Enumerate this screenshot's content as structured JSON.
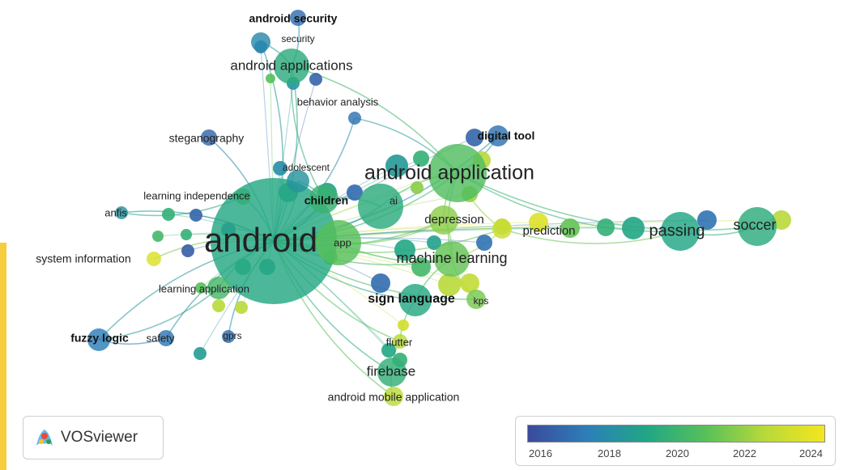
{
  "brand": {
    "name": "VOSviewer"
  },
  "legend": {
    "ticks": [
      "2016",
      "2018",
      "2020",
      "2022",
      "2024"
    ]
  },
  "colors": {
    "low": "#3b4a9c",
    "mid": "#21a685",
    "high": "#f4e61e",
    "accent": "#f6cd3c"
  },
  "nodes": [
    {
      "id": "android",
      "label": "android",
      "year": 2019.6
    },
    {
      "id": "android-application",
      "label": "android application",
      "year": 2020.8
    },
    {
      "id": "android-applications",
      "label": "android applications",
      "year": 2019.8
    },
    {
      "id": "android-security",
      "label": "android security",
      "year": 2016.8
    },
    {
      "id": "security",
      "label": "security",
      "year": 2018.0
    },
    {
      "id": "behavior-analysis",
      "label": "behavior analysis",
      "year": 2017.0
    },
    {
      "id": "steganography",
      "label": "steganography",
      "year": 2016.5
    },
    {
      "id": "digital-tool",
      "label": "digital tool",
      "year": 2017.0
    },
    {
      "id": "adolescent",
      "label": "adolescent",
      "year": 2018.6
    },
    {
      "id": "children",
      "label": "children",
      "year": 2020.2
    },
    {
      "id": "ai",
      "label": "ai",
      "year": 2019.8
    },
    {
      "id": "learning-independence",
      "label": "learning independence",
      "year": 2020.0
    },
    {
      "id": "anfis",
      "label": "anfis",
      "year": 2018.5
    },
    {
      "id": "system-information",
      "label": "system information",
      "year": 2023.5
    },
    {
      "id": "app",
      "label": "app",
      "year": 2021.0
    },
    {
      "id": "depression",
      "label": "depression",
      "year": 2021.8
    },
    {
      "id": "prediction",
      "label": "prediction",
      "year": 2023.0
    },
    {
      "id": "passing",
      "label": "passing",
      "year": 2019.5
    },
    {
      "id": "soccer",
      "label": "soccer",
      "year": 2019.8
    },
    {
      "id": "machine-learning",
      "label": "machine learning",
      "year": 2021.2
    },
    {
      "id": "learning-application",
      "label": "learning application",
      "year": 2020.5
    },
    {
      "id": "sign-language",
      "label": "sign language",
      "year": 2019.6
    },
    {
      "id": "kps",
      "label": "kps",
      "year": 2021.5
    },
    {
      "id": "fuzzy-logic",
      "label": "fuzzy logic",
      "year": 2017.5
    },
    {
      "id": "safety",
      "label": "safety",
      "year": 2017.2
    },
    {
      "id": "gprs",
      "label": "gprs",
      "year": 2016.8
    },
    {
      "id": "flutter",
      "label": "flutter",
      "year": 2022.5
    },
    {
      "id": "firebase",
      "label": "firebase",
      "year": 2020.0
    },
    {
      "id": "android-mobile-application",
      "label": "android mobile application",
      "year": 2022.6
    }
  ]
}
